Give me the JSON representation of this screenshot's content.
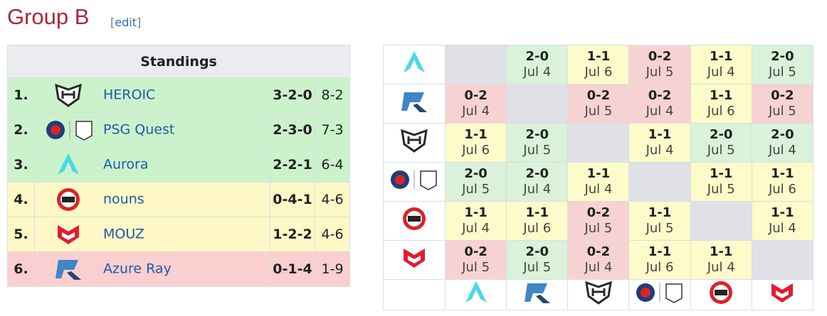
{
  "header": {
    "title": "Group B",
    "edit_open": "[",
    "edit": "edit",
    "edit_close": "]"
  },
  "standings": {
    "title": "Standings",
    "rows": [
      {
        "rank": "1.",
        "team": "HEROIC",
        "record": "3-2-0",
        "score": "8-2",
        "color": "#ccf2cc"
      },
      {
        "rank": "2.",
        "team": "PSG Quest",
        "record": "2-3-0",
        "score": "7-3",
        "color": "#ccf2cc"
      },
      {
        "rank": "3.",
        "team": "Aurora",
        "record": "2-2-1",
        "score": "6-4",
        "color": "#ccf2cc"
      },
      {
        "rank": "4.",
        "team": "nouns",
        "record": "0-4-1",
        "score": "4-6",
        "color": "#fdf8c6"
      },
      {
        "rank": "5.",
        "team": "MOUZ",
        "record": "1-2-2",
        "score": "4-6",
        "color": "#fdf8c6"
      },
      {
        "rank": "6.",
        "team": "Azure Ray",
        "record": "0-1-4",
        "score": "1-9",
        "color": "#f9cfcf"
      }
    ]
  },
  "matrix": {
    "result_colors": {
      "2-0": "#d9f2d9",
      "1-1": "#fdfbc9",
      "0-2": "#f7d2d2"
    },
    "rows": [
      [
        null,
        {
          "score": "2-0",
          "date": "Jul 4"
        },
        {
          "score": "1-1",
          "date": "Jul 6"
        },
        {
          "score": "0-2",
          "date": "Jul 5"
        },
        {
          "score": "1-1",
          "date": "Jul 4"
        },
        {
          "score": "2-0",
          "date": "Jul 5"
        }
      ],
      [
        {
          "score": "0-2",
          "date": "Jul 4"
        },
        null,
        {
          "score": "0-2",
          "date": "Jul 5"
        },
        {
          "score": "0-2",
          "date": "Jul 4"
        },
        {
          "score": "1-1",
          "date": "Jul 6"
        },
        {
          "score": "0-2",
          "date": "Jul 5"
        }
      ],
      [
        {
          "score": "1-1",
          "date": "Jul 6"
        },
        {
          "score": "2-0",
          "date": "Jul 5"
        },
        null,
        {
          "score": "1-1",
          "date": "Jul 4"
        },
        {
          "score": "2-0",
          "date": "Jul 5"
        },
        {
          "score": "2-0",
          "date": "Jul 4"
        }
      ],
      [
        {
          "score": "2-0",
          "date": "Jul 5"
        },
        {
          "score": "2-0",
          "date": "Jul 4"
        },
        {
          "score": "1-1",
          "date": "Jul 4"
        },
        null,
        {
          "score": "1-1",
          "date": "Jul 5"
        },
        {
          "score": "1-1",
          "date": "Jul 6"
        }
      ],
      [
        {
          "score": "1-1",
          "date": "Jul 4"
        },
        {
          "score": "1-1",
          "date": "Jul 6"
        },
        {
          "score": "0-2",
          "date": "Jul 5"
        },
        {
          "score": "1-1",
          "date": "Jul 5"
        },
        null,
        {
          "score": "1-1",
          "date": "Jul 4"
        }
      ],
      [
        {
          "score": "0-2",
          "date": "Jul 5"
        },
        {
          "score": "2-0",
          "date": "Jul 5"
        },
        {
          "score": "0-2",
          "date": "Jul 4"
        },
        {
          "score": "1-1",
          "date": "Jul 6"
        },
        {
          "score": "1-1",
          "date": "Jul 4"
        },
        null
      ]
    ]
  }
}
